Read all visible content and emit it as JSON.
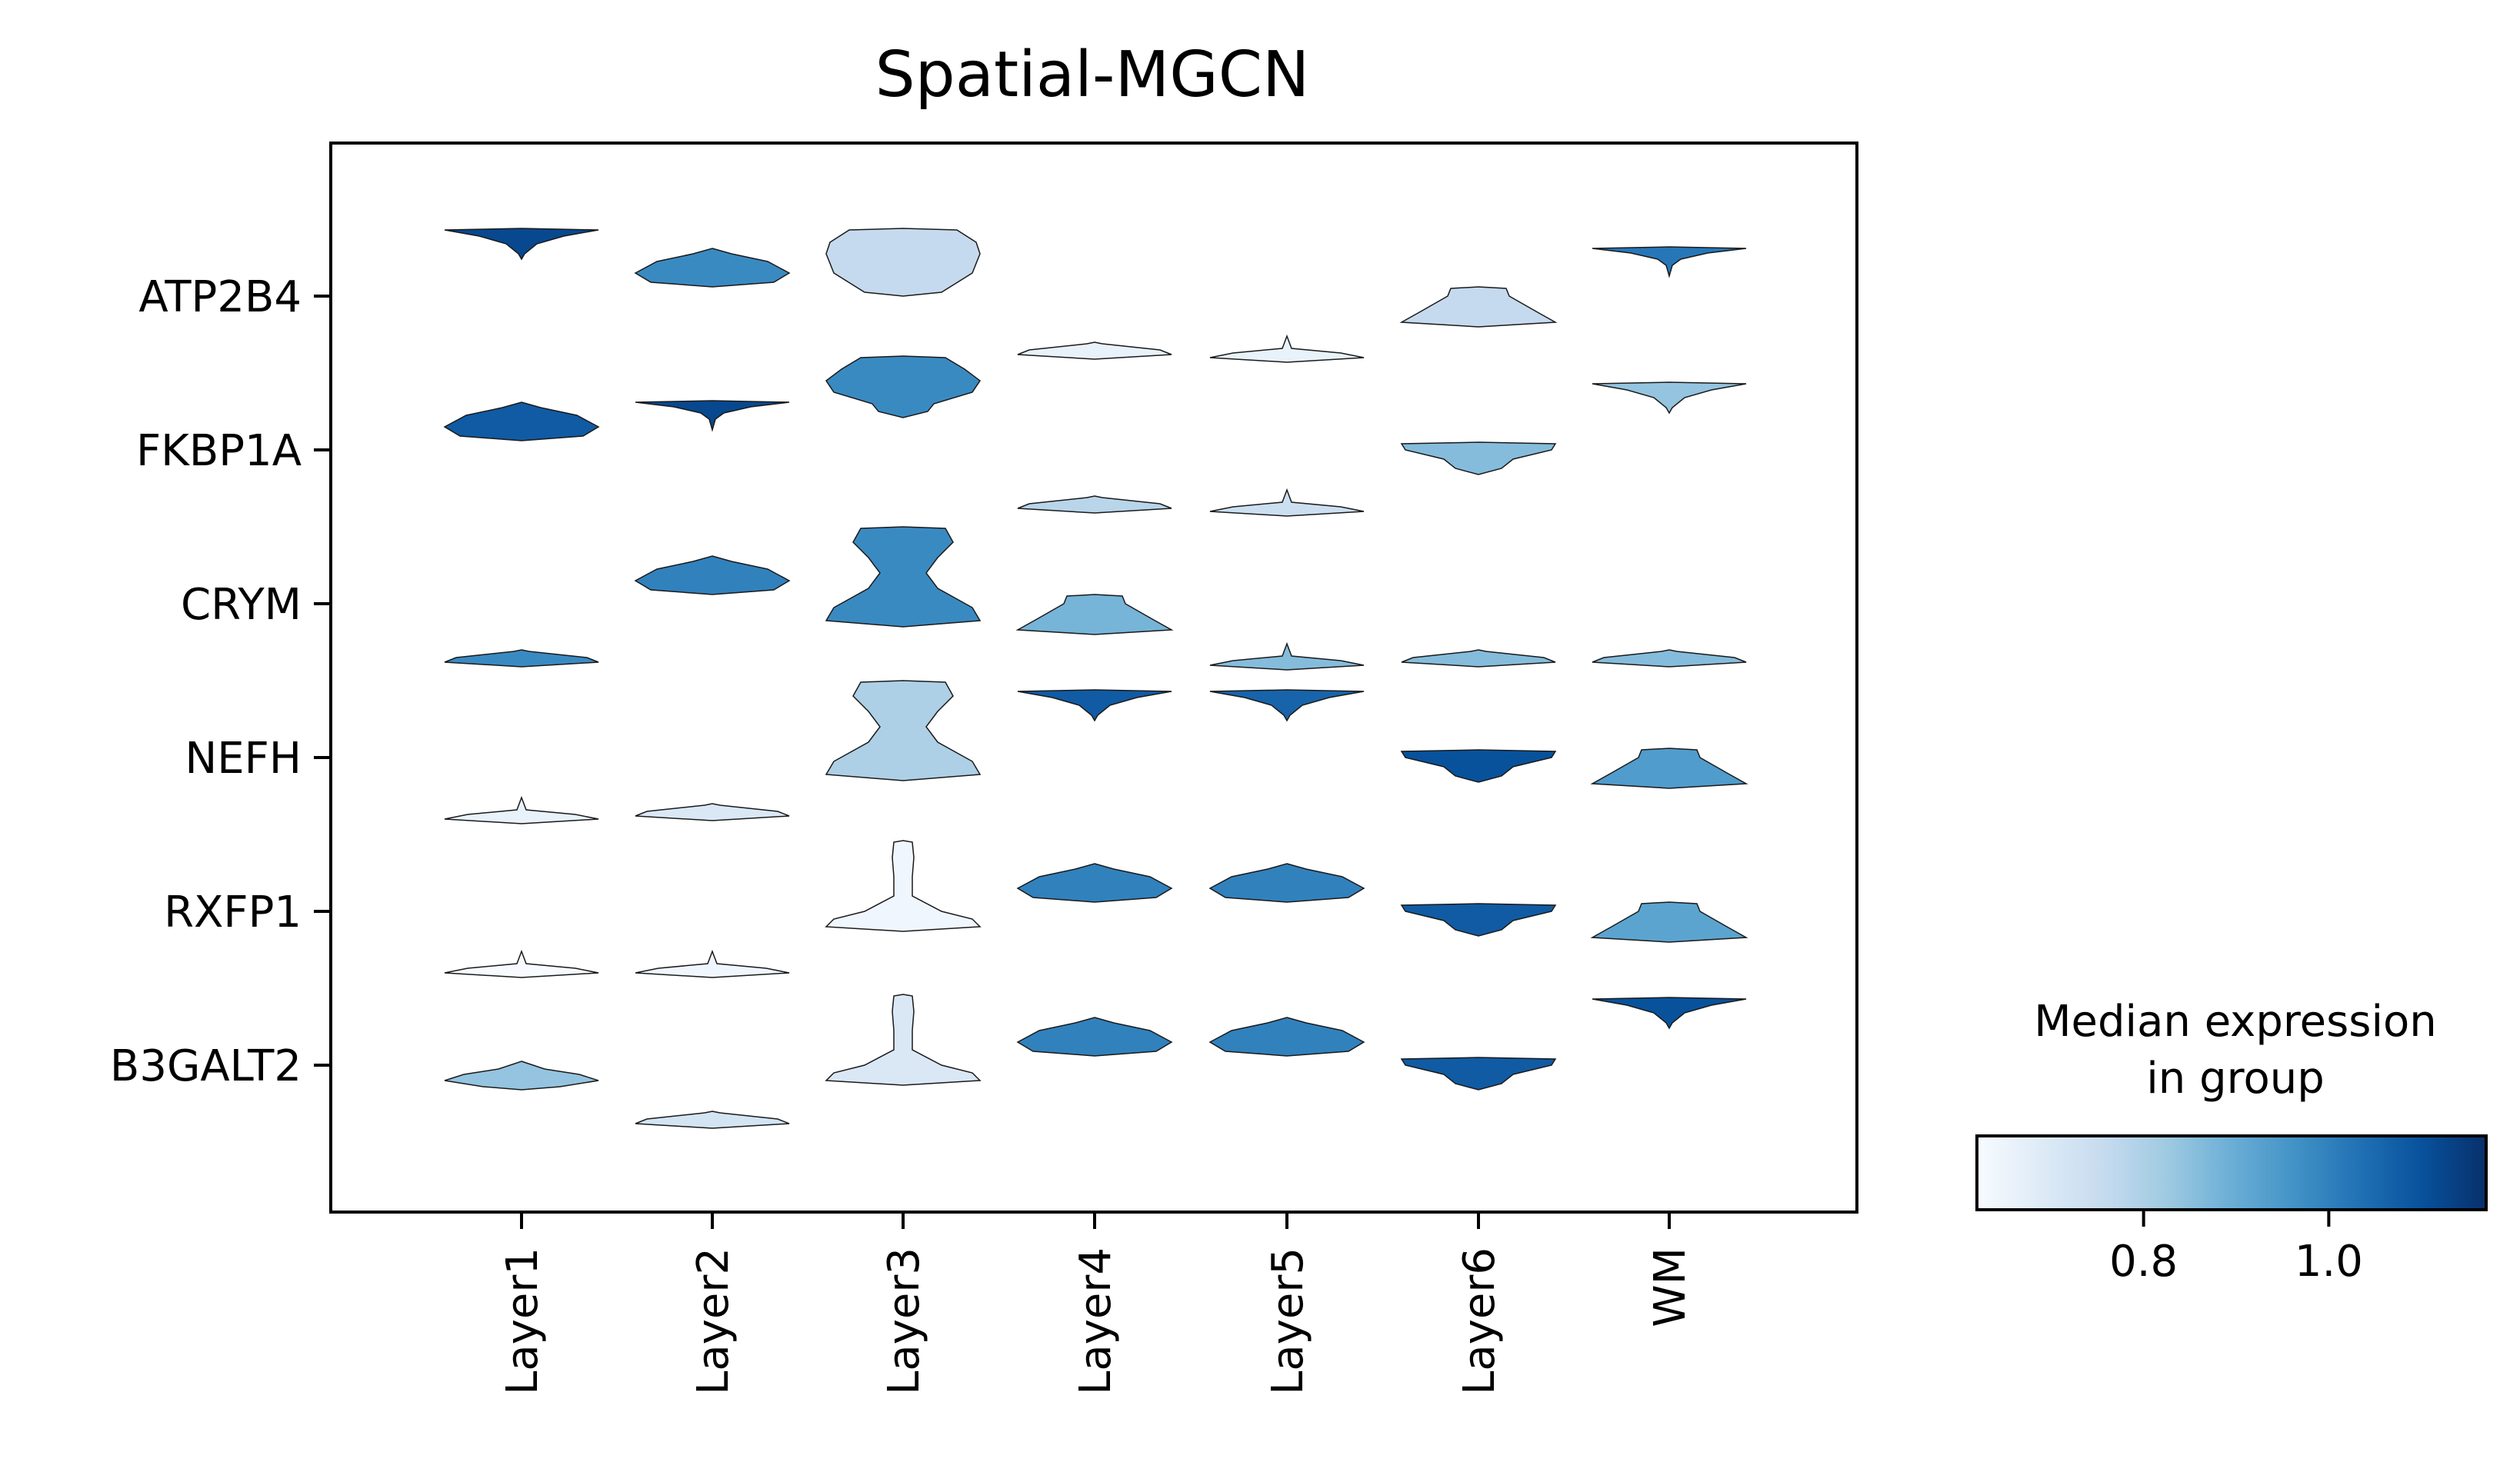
{
  "chart_data": {
    "type": "stacked_violin",
    "title": "Spatial-MGCN",
    "xlabel": "",
    "ylabel": "",
    "groups": [
      "Layer1",
      "Layer2",
      "Layer3",
      "Layer4",
      "Layer5",
      "Layer6",
      "WM"
    ],
    "genes": [
      "ATP2B4",
      "FKBP1A",
      "CRYM",
      "NEFH",
      "RXFP1",
      "B3GALT2"
    ],
    "median_expression": [
      [
        1.12,
        0.98,
        0.76,
        0.66,
        0.66,
        0.76,
        1.02
      ],
      [
        1.08,
        1.12,
        0.98,
        0.78,
        0.74,
        0.86,
        0.84
      ],
      [
        0.98,
        1.0,
        0.98,
        0.88,
        0.86,
        0.86,
        0.86
      ],
      [
        0.66,
        0.7,
        0.8,
        1.08,
        1.06,
        1.1,
        0.94
      ],
      [
        0.62,
        0.64,
        0.64,
        1.0,
        1.0,
        1.08,
        0.92
      ],
      [
        0.84,
        0.72,
        0.7,
        1.0,
        1.0,
        1.08,
        1.1
      ]
    ],
    "colorbar": {
      "title": "Median expression\nin group",
      "colormap": "Blues",
      "range": [
        0.62,
        1.17
      ],
      "ticks": [
        0.8,
        1.0
      ]
    },
    "grid": false,
    "legend": "colorbar bottom-right"
  }
}
